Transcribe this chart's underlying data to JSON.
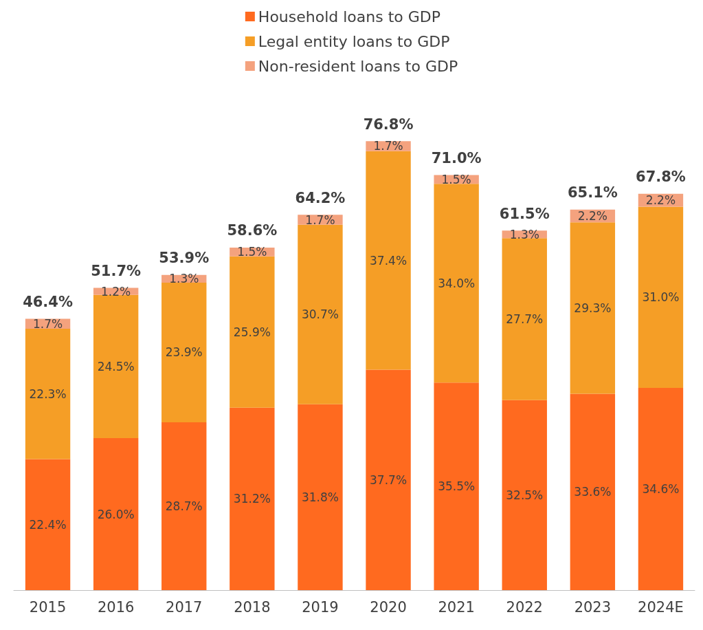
{
  "chart_data": {
    "type": "bar",
    "stacked": true,
    "categories": [
      "2015",
      "2016",
      "2017",
      "2018",
      "2019",
      "2020",
      "2021",
      "2022",
      "2023",
      "2024E"
    ],
    "series": [
      {
        "name": "Household loans to GDP",
        "color": "#ff6a1f",
        "values": [
          22.4,
          26.0,
          28.7,
          31.2,
          31.8,
          37.7,
          35.5,
          32.5,
          33.6,
          34.6
        ],
        "value_labels": [
          "22.4%",
          "26.0%",
          "28.7%",
          "31.2%",
          "31.8%",
          "37.7%",
          "35.5%",
          "32.5%",
          "33.6%",
          "34.6%"
        ]
      },
      {
        "name": "Legal entity loans to GDP",
        "color": "#f59e26",
        "values": [
          22.3,
          24.5,
          23.9,
          25.9,
          30.7,
          37.4,
          34.0,
          27.7,
          29.3,
          31.0
        ],
        "value_labels": [
          "22.3%",
          "24.5%",
          "23.9%",
          "25.9%",
          "30.7%",
          "37.4%",
          "34.0%",
          "27.7%",
          "29.3%",
          "31.0%"
        ]
      },
      {
        "name": "Non-resident loans to GDP",
        "color": "#f4a27e",
        "values": [
          1.7,
          1.2,
          1.3,
          1.5,
          1.7,
          1.7,
          1.5,
          1.3,
          2.2,
          2.2
        ],
        "value_labels": [
          "1.7%",
          "1.2%",
          "1.3%",
          "1.5%",
          "1.7%",
          "1.7%",
          "1.5%",
          "1.3%",
          "2.2%",
          "2.2%"
        ]
      }
    ],
    "totals": [
      "46.4%",
      "51.7%",
      "53.9%",
      "58.6%",
      "64.2%",
      "76.8%",
      "71.0%",
      "61.5%",
      "65.1%",
      "67.8%"
    ],
    "tick_labels": "x",
    "legend": "top"
  }
}
